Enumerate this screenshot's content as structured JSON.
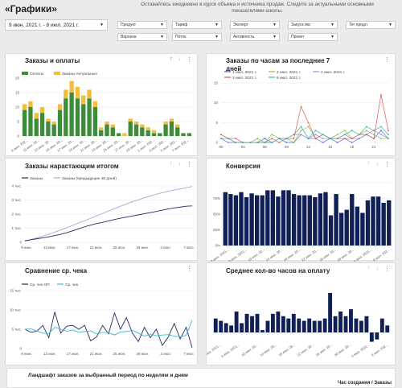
{
  "header": {
    "title": "«Графики»",
    "subtitle": "Оставайтесь ежедневно в курсе объема и источника продаж. Следите за актуальными основными показателями школы.",
    "date_range": "9 июн. 2021 г. - 8 июл. 2021 г.",
    "filters_row1": [
      "Продукт",
      "Тариф",
      "Эксперт",
      "Запуск икс",
      "Тег предл"
    ],
    "filters_row2": [
      "Воронка",
      "Поток",
      "Активность",
      "Проект"
    ]
  },
  "cards": {
    "orders": {
      "title": "Заказы и оплаты",
      "legend": [
        "Оплаты",
        "Заказы Актуальные"
      ]
    },
    "hourly": {
      "title": "Заказы по часам за последние 7 дней",
      "legend": [
        "1 июл. 2021 г.",
        "2 июл. 2021 г.",
        "4 июл. 2021 г.",
        "3 июл. 2021 г.",
        "6 июл. 2021 г."
      ]
    },
    "cumulative": {
      "title": "Заказы нарастающим итогом",
      "legend": [
        "Заказы",
        "Заказы (предыдущие 30 дней)"
      ]
    },
    "conversion": {
      "title": "Конверсия"
    },
    "avgcheck": {
      "title": "Сравнение ср. чека",
      "legend": [
        "Ср. чек ОП",
        "Ср. чек"
      ]
    },
    "hours_to_pay": {
      "title": "Среднее кол-во часов на оплату"
    }
  },
  "footer": {
    "title": "Ландшафт заказов за выбранный период по неделям и дням",
    "right_label": "Час создания / Заказы"
  },
  "chart_data": [
    {
      "id": "orders",
      "type": "bar",
      "stacked": true,
      "categories": [
        "9 июн.",
        "10 июн.",
        "11 июн.",
        "12 июн.",
        "13 июн.",
        "14 июн.",
        "15 июн.",
        "16 июн.",
        "17 июн.",
        "18 июн.",
        "19 июн.",
        "20 июн.",
        "21 июн.",
        "22 июн.",
        "23 июн.",
        "24 июн.",
        "25 июн.",
        "26 июн.",
        "27 июн.",
        "28 июн.",
        "29 июн.",
        "30 июн.",
        "1 июл.",
        "2 июл.",
        "3 июл.",
        "4 июл.",
        "5 июл.",
        "6 июл.",
        "7 июл."
      ],
      "tick_labels": [
        "9 июн. 202...",
        "11 июн. 20...",
        "13 июн. 20...",
        "15 июн. 20...",
        "17 июн. 20...",
        "19 июн. 20...",
        "21 июн. 20...",
        "23 июн. 20...",
        "25 июн. 20...",
        "27 июн. 20...",
        "29 июн. 20...",
        "1 июл. 202...",
        "3 июл. 202...",
        "5 июл. 202...",
        "7 июл. 202..."
      ],
      "series": [
        {
          "name": "Оплаты",
          "color": "#3c8c3c",
          "values": [
            9,
            10,
            6,
            8,
            5,
            4,
            9,
            13,
            15,
            13,
            11,
            13,
            10,
            2,
            4,
            3,
            1,
            0,
            5,
            4,
            3,
            2,
            1,
            1,
            4,
            5,
            3,
            1,
            1
          ]
        },
        {
          "name": "Заказы Актуальные",
          "color": "#f4bd3b",
          "values": [
            2,
            2,
            2,
            2,
            1,
            1,
            2,
            3,
            4,
            4,
            3,
            3,
            2,
            1,
            1,
            1,
            0,
            1,
            1,
            1,
            1,
            1,
            1,
            0,
            1,
            1,
            1,
            0,
            0
          ]
        }
      ],
      "ylim": [
        0,
        20
      ]
    },
    {
      "id": "hourly",
      "type": "line",
      "x": [
        "00",
        "01",
        "02",
        "03",
        "04",
        "05",
        "06",
        "07",
        "08",
        "09",
        "10",
        "11",
        "12",
        "13",
        "14",
        "15",
        "16",
        "17",
        "18",
        "19",
        "20",
        "21",
        "22",
        "23"
      ],
      "tick_labels": [
        "00",
        "03",
        "06",
        "09",
        "12",
        "15",
        "18",
        "21"
      ],
      "series": [
        {
          "name": "1 июл. 2021 г.",
          "color": "#4a6fd8",
          "values": [
            1,
            0,
            0,
            0,
            0,
            0,
            1,
            0,
            1,
            0,
            0,
            2,
            1,
            1,
            0,
            1,
            0,
            1,
            0,
            1,
            2,
            1,
            3,
            1
          ]
        },
        {
          "name": "2 июл. 2021 г.",
          "color": "#7fbf4f",
          "values": [
            2,
            1,
            0,
            0,
            0,
            1,
            0,
            2,
            1,
            1,
            0,
            3,
            4,
            1,
            2,
            1,
            2,
            3,
            1,
            2,
            3,
            2,
            1,
            1
          ]
        },
        {
          "name": "4 июл. 2021 г.",
          "color": "#9a8fd8",
          "values": [
            1,
            0,
            0,
            0,
            0,
            0,
            0,
            0,
            1,
            1,
            2,
            2,
            1,
            2,
            1,
            1,
            1,
            2,
            1,
            1,
            2,
            3,
            2,
            1
          ]
        },
        {
          "name": "3 июл. 2021 г.",
          "color": "#e05757",
          "values": [
            2,
            1,
            1,
            0,
            0,
            0,
            0,
            1,
            0,
            1,
            1,
            9,
            5,
            1,
            2,
            1,
            1,
            1,
            1,
            2,
            2,
            1,
            12,
            3
          ]
        },
        {
          "name": "6 июл. 2021 г.",
          "color": "#3fb0a0",
          "values": [
            1,
            1,
            0,
            0,
            0,
            0,
            0,
            0,
            1,
            1,
            2,
            4,
            1,
            3,
            2,
            1,
            1,
            2,
            3,
            2,
            4,
            3,
            4,
            2
          ]
        }
      ],
      "ylim": [
        0,
        15
      ]
    },
    {
      "id": "cumulative",
      "type": "line",
      "categories": [
        "9 июн.",
        "10 июн.",
        "11 июн.",
        "12 июн.",
        "13 июн.",
        "14 июн.",
        "15 июн.",
        "16 июн.",
        "17 июн.",
        "18 июн.",
        "19 июн.",
        "20 июн.",
        "21 июн.",
        "22 июн.",
        "23 июн.",
        "24 июн.",
        "25 июн.",
        "26 июн.",
        "27 июн.",
        "28 июн.",
        "29 июн.",
        "30 июн.",
        "1 июл.",
        "2 июл.",
        "3 июл.",
        "4 июл.",
        "5 июл.",
        "6 июл.",
        "7 июл."
      ],
      "tick_labels": [
        "9 июн.",
        "13 июн.",
        "17 июн.",
        "21 июн.",
        "25 июн.",
        "29 июн.",
        "3 июл.",
        "7 июл."
      ],
      "y_tick_labels": [
        "0",
        "1 тыс.",
        "2 тыс.",
        "3 тыс.",
        "4 тыс."
      ],
      "series": [
        {
          "name": "Заказы",
          "color": "#1f2f66",
          "values": [
            100,
            180,
            250,
            320,
            390,
            480,
            570,
            680,
            820,
            960,
            1100,
            1220,
            1330,
            1420,
            1520,
            1620,
            1710,
            1790,
            1870,
            1950,
            2030,
            2110,
            2190,
            2280,
            2370,
            2440,
            2500,
            2560,
            2580
          ]
        },
        {
          "name": "Заказы (предыдущие 30 дней)",
          "color": "#a9a6d6",
          "values": [
            90,
            200,
            320,
            450,
            580,
            720,
            880,
            1040,
            1200,
            1370,
            1530,
            1700,
            1880,
            2050,
            2220,
            2390,
            2560,
            2720,
            2880,
            3020,
            3160,
            3290,
            3410,
            3520,
            3620,
            3710,
            3790,
            3870,
            3960
          ]
        }
      ],
      "ylim": [
        0,
        4000
      ]
    },
    {
      "id": "conversion",
      "type": "bar",
      "tick_labels": [
        "2 июн. 2021...",
        "6 июн. 2021...",
        "10 июн. 20...",
        "14 июн. 20...",
        "18 июн. 20...",
        "22 июн. 20...",
        "26 июн. 20...",
        "30 июн. 20...",
        "4 июл. 2021...",
        "8 июл. 202..."
      ],
      "y_tick_labels": [
        "0%",
        "25%",
        "50%",
        "75%"
      ],
      "series": [
        {
          "name": "Конверсия",
          "color": "#101f55",
          "values": [
            85,
            82,
            80,
            85,
            77,
            83,
            80,
            80,
            88,
            88,
            78,
            88,
            88,
            82,
            80,
            80,
            80,
            77,
            83,
            85,
            48,
            82,
            52,
            57,
            82,
            62,
            52,
            72,
            78,
            78,
            68,
            72
          ]
        }
      ],
      "ylim": [
        0,
        100
      ]
    },
    {
      "id": "avgcheck",
      "type": "line",
      "categories": [
        "9 июн.",
        "10 июн.",
        "11 июн.",
        "12 июн.",
        "13 июн.",
        "14 июн.",
        "15 июн.",
        "16 июн.",
        "17 июн.",
        "18 июн.",
        "19 июн.",
        "20 июн.",
        "21 июн.",
        "22 июн.",
        "23 июн.",
        "24 июн.",
        "25 июн.",
        "26 июн.",
        "27 июн.",
        "28 июн.",
        "29 июн.",
        "30 июн.",
        "1 июл.",
        "2 июл.",
        "3 июл.",
        "4 июл.",
        "5 июл.",
        "6 июл.",
        "7 июл."
      ],
      "tick_labels": [
        "9 июн.",
        "13 июн.",
        "17 июн.",
        "21 июн.",
        "25 июн.",
        "29 июн.",
        "3 июл.",
        "7 июл."
      ],
      "y_tick_labels": [
        "0",
        "5 тыс.",
        "10 тыс.",
        "15 тыс."
      ],
      "series": [
        {
          "name": "Ср. чек ОП",
          "color": "#1f2f66",
          "values": [
            5000,
            4200,
            4500,
            6000,
            2800,
            9500,
            4000,
            5800,
            6000,
            5000,
            6000,
            2000,
            3000,
            6000,
            3800,
            9200,
            5000,
            8000,
            4000,
            1800,
            5500,
            2800,
            5000,
            800,
            3000,
            6500,
            2500,
            5500,
            200
          ]
        },
        {
          "name": "Ср. чек",
          "color": "#3ab8c8",
          "values": [
            5000,
            5100,
            4500,
            4000,
            3900,
            5500,
            5000,
            4500,
            4800,
            4200,
            4400,
            4600,
            3800,
            4200,
            4100,
            3500,
            4300,
            4400,
            4700,
            4000,
            3200,
            3800,
            3300,
            3500,
            3600,
            3200,
            3000,
            3400,
            7400
          ]
        }
      ],
      "ylim": [
        0,
        15000
      ]
    },
    {
      "id": "hours_to_pay",
      "type": "bar",
      "tick_labels": [
        "2 июн. 2021...",
        "6 июн. 2021...",
        "10 июн. 20...",
        "14 июн. 20...",
        "18 июн. 20...",
        "22 июн. 20...",
        "26 июн. 20...",
        "30 июн. 20...",
        "4 июл. 2021...",
        "8 июл. 202..."
      ],
      "series": [
        {
          "name": "Среднее кол-во часов на оплату",
          "color": "#101f55",
          "values": [
            6,
            5,
            4,
            3,
            9,
            4,
            8,
            7,
            8,
            1,
            5,
            8,
            9,
            7,
            6,
            8,
            6,
            5,
            6,
            5,
            5,
            6,
            17,
            7,
            9,
            7,
            10,
            6,
            5,
            7,
            -4,
            -3,
            6,
            3
          ]
        }
      ]
    }
  ]
}
